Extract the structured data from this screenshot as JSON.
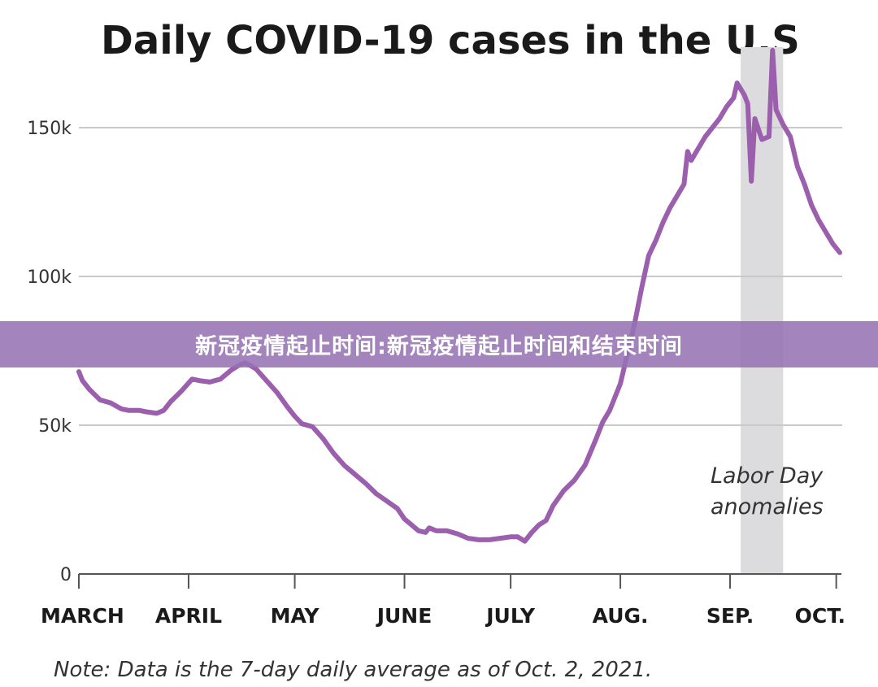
{
  "chart_data": {
    "type": "line",
    "title": "Daily COVID-19 cases in the U.S",
    "note": "Note: Data is the 7-day daily average as of Oct. 2, 2021.",
    "annotation": [
      "Labor Day",
      "anomalies"
    ],
    "line_color": "#9b5fae",
    "band_color": "#dcdcde",
    "grid": true,
    "ylim": [
      0,
      165000
    ],
    "y_ticks": [
      {
        "value": 0,
        "label": "0"
      },
      {
        "value": 50000,
        "label": "50k"
      },
      {
        "value": 100000,
        "label": "100k"
      },
      {
        "value": 150000,
        "label": "150k"
      }
    ],
    "x_range": [
      "2021-03-01",
      "2021-10-02"
    ],
    "x_ticks": [
      {
        "date": "2021-03-01",
        "label": "MARCH"
      },
      {
        "date": "2021-04-01",
        "label": "APRIL"
      },
      {
        "date": "2021-05-01",
        "label": "MAY"
      },
      {
        "date": "2021-06-01",
        "label": "JUNE"
      },
      {
        "date": "2021-07-01",
        "label": "JULY"
      },
      {
        "date": "2021-08-01",
        "label": "AUG."
      },
      {
        "date": "2021-09-01",
        "label": "SEP."
      },
      {
        "date": "2021-10-01",
        "label": "OCT."
      }
    ],
    "shaded_range": [
      "2021-09-04",
      "2021-09-16"
    ],
    "series": [
      {
        "values": [
          [
            "2021-03-01",
            68000
          ],
          [
            "2021-03-02",
            65000
          ],
          [
            "2021-03-04",
            62000
          ],
          [
            "2021-03-07",
            58500
          ],
          [
            "2021-03-10",
            57500
          ],
          [
            "2021-03-13",
            55500
          ],
          [
            "2021-03-15",
            55000
          ],
          [
            "2021-03-18",
            55000
          ],
          [
            "2021-03-20",
            54500
          ],
          [
            "2021-03-23",
            54000
          ],
          [
            "2021-03-25",
            55000
          ],
          [
            "2021-03-27",
            58000
          ],
          [
            "2021-03-30",
            61500
          ],
          [
            "2021-04-02",
            65500
          ],
          [
            "2021-04-04",
            65000
          ],
          [
            "2021-04-07",
            64500
          ],
          [
            "2021-04-10",
            65500
          ],
          [
            "2021-04-13",
            68500
          ],
          [
            "2021-04-15",
            70000
          ],
          [
            "2021-04-17",
            71000
          ],
          [
            "2021-04-20",
            69000
          ],
          [
            "2021-04-23",
            65000
          ],
          [
            "2021-04-26",
            61000
          ],
          [
            "2021-04-29",
            56000
          ],
          [
            "2021-05-01",
            53000
          ],
          [
            "2021-05-03",
            50500
          ],
          [
            "2021-05-06",
            49500
          ],
          [
            "2021-05-09",
            45500
          ],
          [
            "2021-05-12",
            40500
          ],
          [
            "2021-05-15",
            36500
          ],
          [
            "2021-05-18",
            33500
          ],
          [
            "2021-05-21",
            30500
          ],
          [
            "2021-05-24",
            27000
          ],
          [
            "2021-05-27",
            24500
          ],
          [
            "2021-05-30",
            22000
          ],
          [
            "2021-06-01",
            18500
          ],
          [
            "2021-06-03",
            16500
          ],
          [
            "2021-06-05",
            14500
          ],
          [
            "2021-06-07",
            14000
          ],
          [
            "2021-06-08",
            15500
          ],
          [
            "2021-06-10",
            14500
          ],
          [
            "2021-06-13",
            14500
          ],
          [
            "2021-06-16",
            13500
          ],
          [
            "2021-06-19",
            12000
          ],
          [
            "2021-06-22",
            11500
          ],
          [
            "2021-06-25",
            11500
          ],
          [
            "2021-06-28",
            12000
          ],
          [
            "2021-07-01",
            12500
          ],
          [
            "2021-07-03",
            12500
          ],
          [
            "2021-07-05",
            11000
          ],
          [
            "2021-07-07",
            14000
          ],
          [
            "2021-07-09",
            16500
          ],
          [
            "2021-07-11",
            18000
          ],
          [
            "2021-07-13",
            23000
          ],
          [
            "2021-07-16",
            28000
          ],
          [
            "2021-07-19",
            31500
          ],
          [
            "2021-07-22",
            36500
          ],
          [
            "2021-07-25",
            45000
          ],
          [
            "2021-07-27",
            51000
          ],
          [
            "2021-07-29",
            55000
          ],
          [
            "2021-08-01",
            64000
          ],
          [
            "2021-08-03",
            74000
          ],
          [
            "2021-08-05",
            84000
          ],
          [
            "2021-08-07",
            96000
          ],
          [
            "2021-08-09",
            107000
          ],
          [
            "2021-08-11",
            112000
          ],
          [
            "2021-08-13",
            118000
          ],
          [
            "2021-08-15",
            123000
          ],
          [
            "2021-08-17",
            127000
          ],
          [
            "2021-08-19",
            131000
          ],
          [
            "2021-08-20",
            142000
          ],
          [
            "2021-08-21",
            139000
          ],
          [
            "2021-08-23",
            143000
          ],
          [
            "2021-08-25",
            147000
          ],
          [
            "2021-08-27",
            150000
          ],
          [
            "2021-08-29",
            153000
          ],
          [
            "2021-08-31",
            157000
          ],
          [
            "2021-09-02",
            160000
          ],
          [
            "2021-09-03",
            165000
          ],
          [
            "2021-09-04",
            163000
          ],
          [
            "2021-09-05",
            161000
          ],
          [
            "2021-09-06",
            158000
          ],
          [
            "2021-09-07",
            132000
          ],
          [
            "2021-09-08",
            153000
          ],
          [
            "2021-09-10",
            146000
          ],
          [
            "2021-09-12",
            147000
          ],
          [
            "2021-09-13",
            176000
          ],
          [
            "2021-09-14",
            156000
          ],
          [
            "2021-09-16",
            151000
          ],
          [
            "2021-09-18",
            147000
          ],
          [
            "2021-09-20",
            137000
          ],
          [
            "2021-09-22",
            131000
          ],
          [
            "2021-09-24",
            124000
          ],
          [
            "2021-09-26",
            119000
          ],
          [
            "2021-09-28",
            115000
          ],
          [
            "2021-09-30",
            111000
          ],
          [
            "2021-10-02",
            108000
          ]
        ]
      }
    ]
  },
  "banner": {
    "text": "新冠疫情起止时间:新冠疫情起止时间和结束时间"
  }
}
